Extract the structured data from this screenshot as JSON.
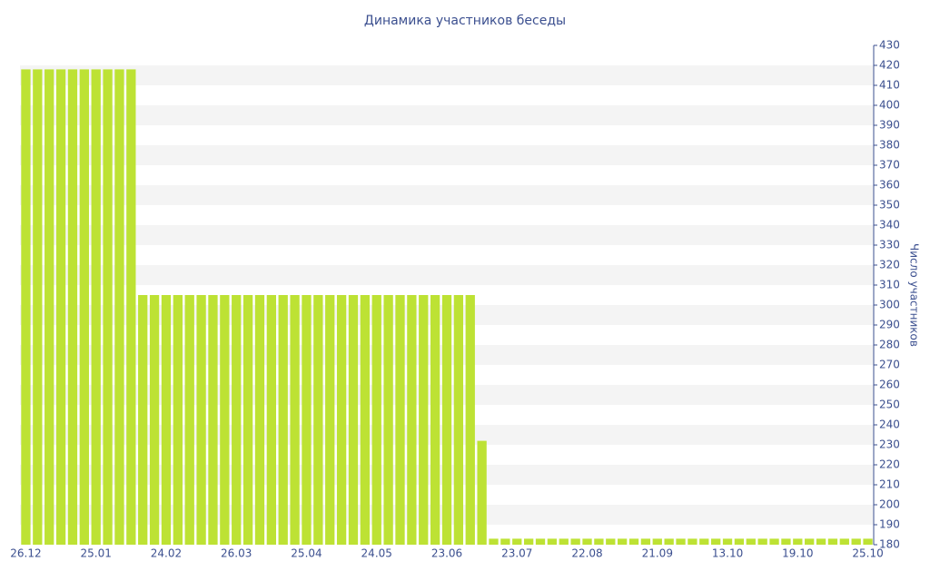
{
  "chart_data": {
    "type": "bar",
    "title": "Динамика участников беседы",
    "y_axis_label": "Число участников",
    "categories": [
      "26.12",
      null,
      null,
      null,
      null,
      null,
      "25.01",
      null,
      null,
      null,
      null,
      null,
      "24.02",
      null,
      null,
      null,
      null,
      null,
      "26.03",
      null,
      null,
      null,
      null,
      null,
      "25.04",
      null,
      null,
      null,
      null,
      null,
      "24.05",
      null,
      null,
      null,
      null,
      null,
      "23.06",
      null,
      null,
      null,
      null,
      null,
      "23.07",
      null,
      null,
      null,
      null,
      null,
      "22.08",
      null,
      null,
      null,
      null,
      null,
      "21.09",
      null,
      null,
      null,
      null,
      null,
      "13.10",
      null,
      null,
      null,
      null,
      null,
      "19.10",
      null,
      null,
      null,
      null,
      null,
      "25.10"
    ],
    "values": [
      418,
      418,
      418,
      418,
      418,
      418,
      418,
      418,
      418,
      418,
      305,
      305,
      305,
      305,
      305,
      305,
      305,
      305,
      305,
      305,
      305,
      305,
      305,
      305,
      305,
      305,
      305,
      305,
      305,
      305,
      305,
      305,
      305,
      305,
      305,
      305,
      305,
      305,
      305,
      232,
      183,
      183,
      183,
      183,
      183,
      183,
      183,
      183,
      183,
      183,
      183,
      183,
      183,
      183,
      183,
      183,
      183,
      183,
      183,
      183,
      183,
      183,
      183,
      183,
      183,
      183,
      183,
      183,
      183,
      183,
      183,
      183,
      183
    ],
    "color": "#bde234",
    "ylim": [
      180,
      430
    ],
    "yticks": [
      180,
      190,
      200,
      210,
      220,
      230,
      240,
      250,
      260,
      270,
      280,
      290,
      300,
      310,
      320,
      330,
      340,
      350,
      360,
      370,
      380,
      390,
      400,
      410,
      420,
      430
    ],
    "grid": true,
    "grid_color": "#f4f4f4",
    "y_axis_side": "right"
  }
}
